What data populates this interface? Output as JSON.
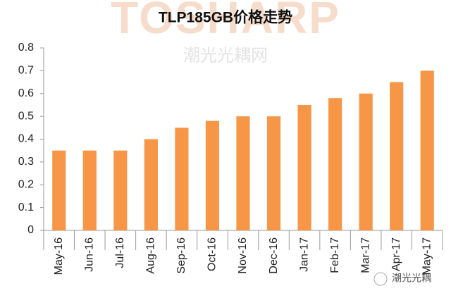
{
  "chart_data": {
    "type": "bar",
    "title": "TLP185GB价格走势",
    "watermark_logo": "TOSHARP",
    "watermark_text": "潮光光耦网",
    "footer_text": "潮光光耦",
    "categories": [
      "May-16",
      "Jun-16",
      "Jul-16",
      "Aug-16",
      "Sep-16",
      "Oct-16",
      "Nov-16",
      "Dec-16",
      "Jan-17",
      "Feb-17",
      "Mar-17",
      "Apr-17",
      "May-17"
    ],
    "values": [
      0.35,
      0.35,
      0.35,
      0.4,
      0.45,
      0.48,
      0.5,
      0.5,
      0.55,
      0.58,
      0.6,
      0.65,
      0.7
    ],
    "color": "#f79646",
    "ylim": [
      0,
      0.8
    ],
    "yticks": [
      0,
      0.1,
      0.2,
      0.3,
      0.4,
      0.5,
      0.6,
      0.7,
      0.8
    ],
    "grid": false
  }
}
